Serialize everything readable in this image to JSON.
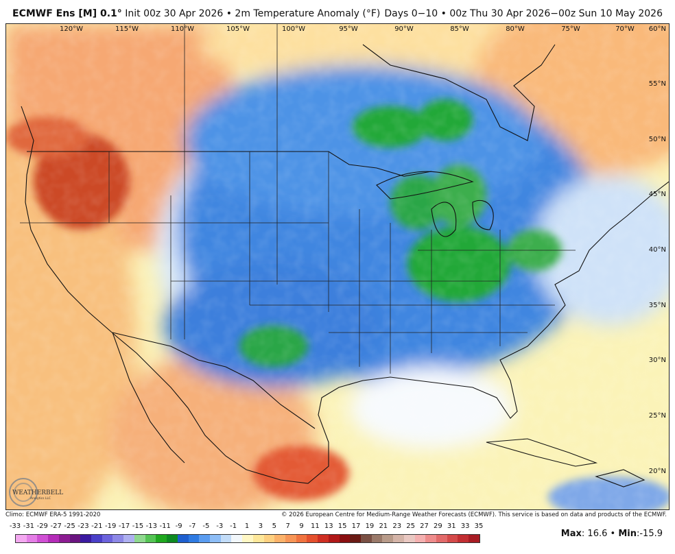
{
  "header": {
    "model": "ECMWF Ens [M] 0.1",
    "degree": "°",
    "init": " Init 00z 30 Apr 2026 • 2m Temperature Anomaly (°F)",
    "period": "Days 0−10 • 00z Thu 30 Apr 2026−00z Sun 10 May 2026"
  },
  "map": {
    "lon_labels": [
      "120°W",
      "115°W",
      "110°W",
      "105°W",
      "100°W",
      "95°W",
      "90°W",
      "85°W",
      "80°W",
      "75°W",
      "70°W"
    ],
    "lat_labels": [
      "60°N",
      "55°N",
      "50°N",
      "45°N",
      "40°N",
      "35°N",
      "30°N",
      "25°N",
      "20°N"
    ],
    "logo_text": "WEATHERBELL",
    "logo_sub": "Analytics LLC"
  },
  "credits": {
    "climo": "Climo: ECMWF ERA-5 1991-2020",
    "copyright": "© 2026 European Centre for Medium-Range Weather Forecasts (ECMWF). This service is based on data and products of the ECMWF."
  },
  "legend": {
    "ticks": [
      "-33",
      "-31",
      "-29",
      "-27",
      "-25",
      "-23",
      "-21",
      "-19",
      "-17",
      "-15",
      "-13",
      "-11",
      "-9",
      "-7",
      "-5",
      "-3",
      "-1",
      "1",
      "3",
      "5",
      "7",
      "9",
      "11",
      "13",
      "15",
      "17",
      "19",
      "21",
      "23",
      "25",
      "27",
      "29",
      "31",
      "33",
      "35"
    ],
    "colors": [
      "#f3a8f0",
      "#e47ee6",
      "#d050d4",
      "#b42cb8",
      "#8c1c92",
      "#6a1480",
      "#3b1aa0",
      "#4a3fc8",
      "#6c63dc",
      "#8d88e6",
      "#aeb0f0",
      "#8fd88f",
      "#55c455",
      "#1fa81f",
      "#0e8a22",
      "#1e5fcf",
      "#2f7be2",
      "#5a9cf0",
      "#8dbdf6",
      "#c2dcf8",
      "#f2f7fb",
      "#fff7c4",
      "#fde79a",
      "#fdd080",
      "#fbb26a",
      "#f79556",
      "#f0733f",
      "#e4502d",
      "#cf2e22",
      "#b01818",
      "#8a0f10",
      "#6a1a14",
      "#7a5044",
      "#9a7a6a",
      "#b89b8a",
      "#d4b4a8",
      "#e9c8c2",
      "#f4b0b0",
      "#ee8c8c",
      "#e26a6a",
      "#d44a4a",
      "#c22e32",
      "#a81c24"
    ],
    "max_label": "Max",
    "max_value": "16.6",
    "sep": " • ",
    "min_label": "Min",
    "min_value": "-15.9",
    "colon": ": ",
    "colon2": ":"
  }
}
